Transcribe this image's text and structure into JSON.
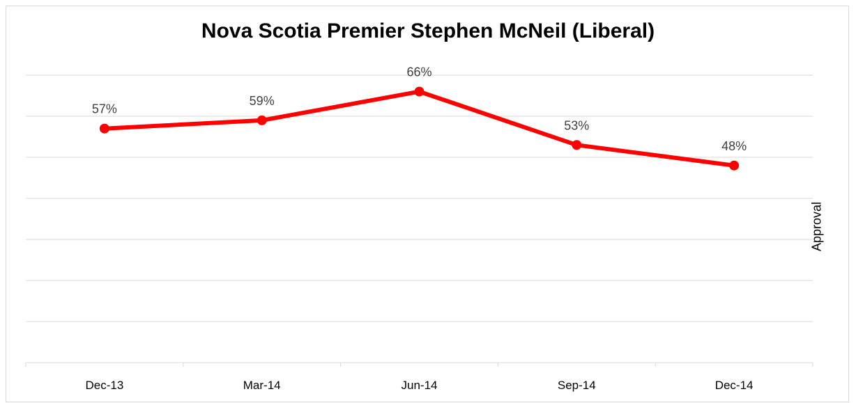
{
  "chart_data": {
    "type": "line",
    "title": "Nova Scotia Premier Stephen McNeil (Liberal)",
    "xlabel": "",
    "ylabel": "Approval",
    "categories": [
      "Dec-13",
      "Mar-14",
      "Jun-14",
      "Sep-14",
      "Dec-14"
    ],
    "series": [
      {
        "values": [
          57,
          59,
          66,
          53,
          48
        ],
        "data_labels": [
          "57%",
          "59%",
          "66%",
          "53%",
          "48%"
        ],
        "color": "#ff0000"
      }
    ],
    "ylim": [
      0,
      70
    ],
    "grid": true,
    "legend": "none"
  },
  "colors": {
    "line": "#ff0000",
    "gridline": "#d9d9d9",
    "label_text": "#404040"
  }
}
